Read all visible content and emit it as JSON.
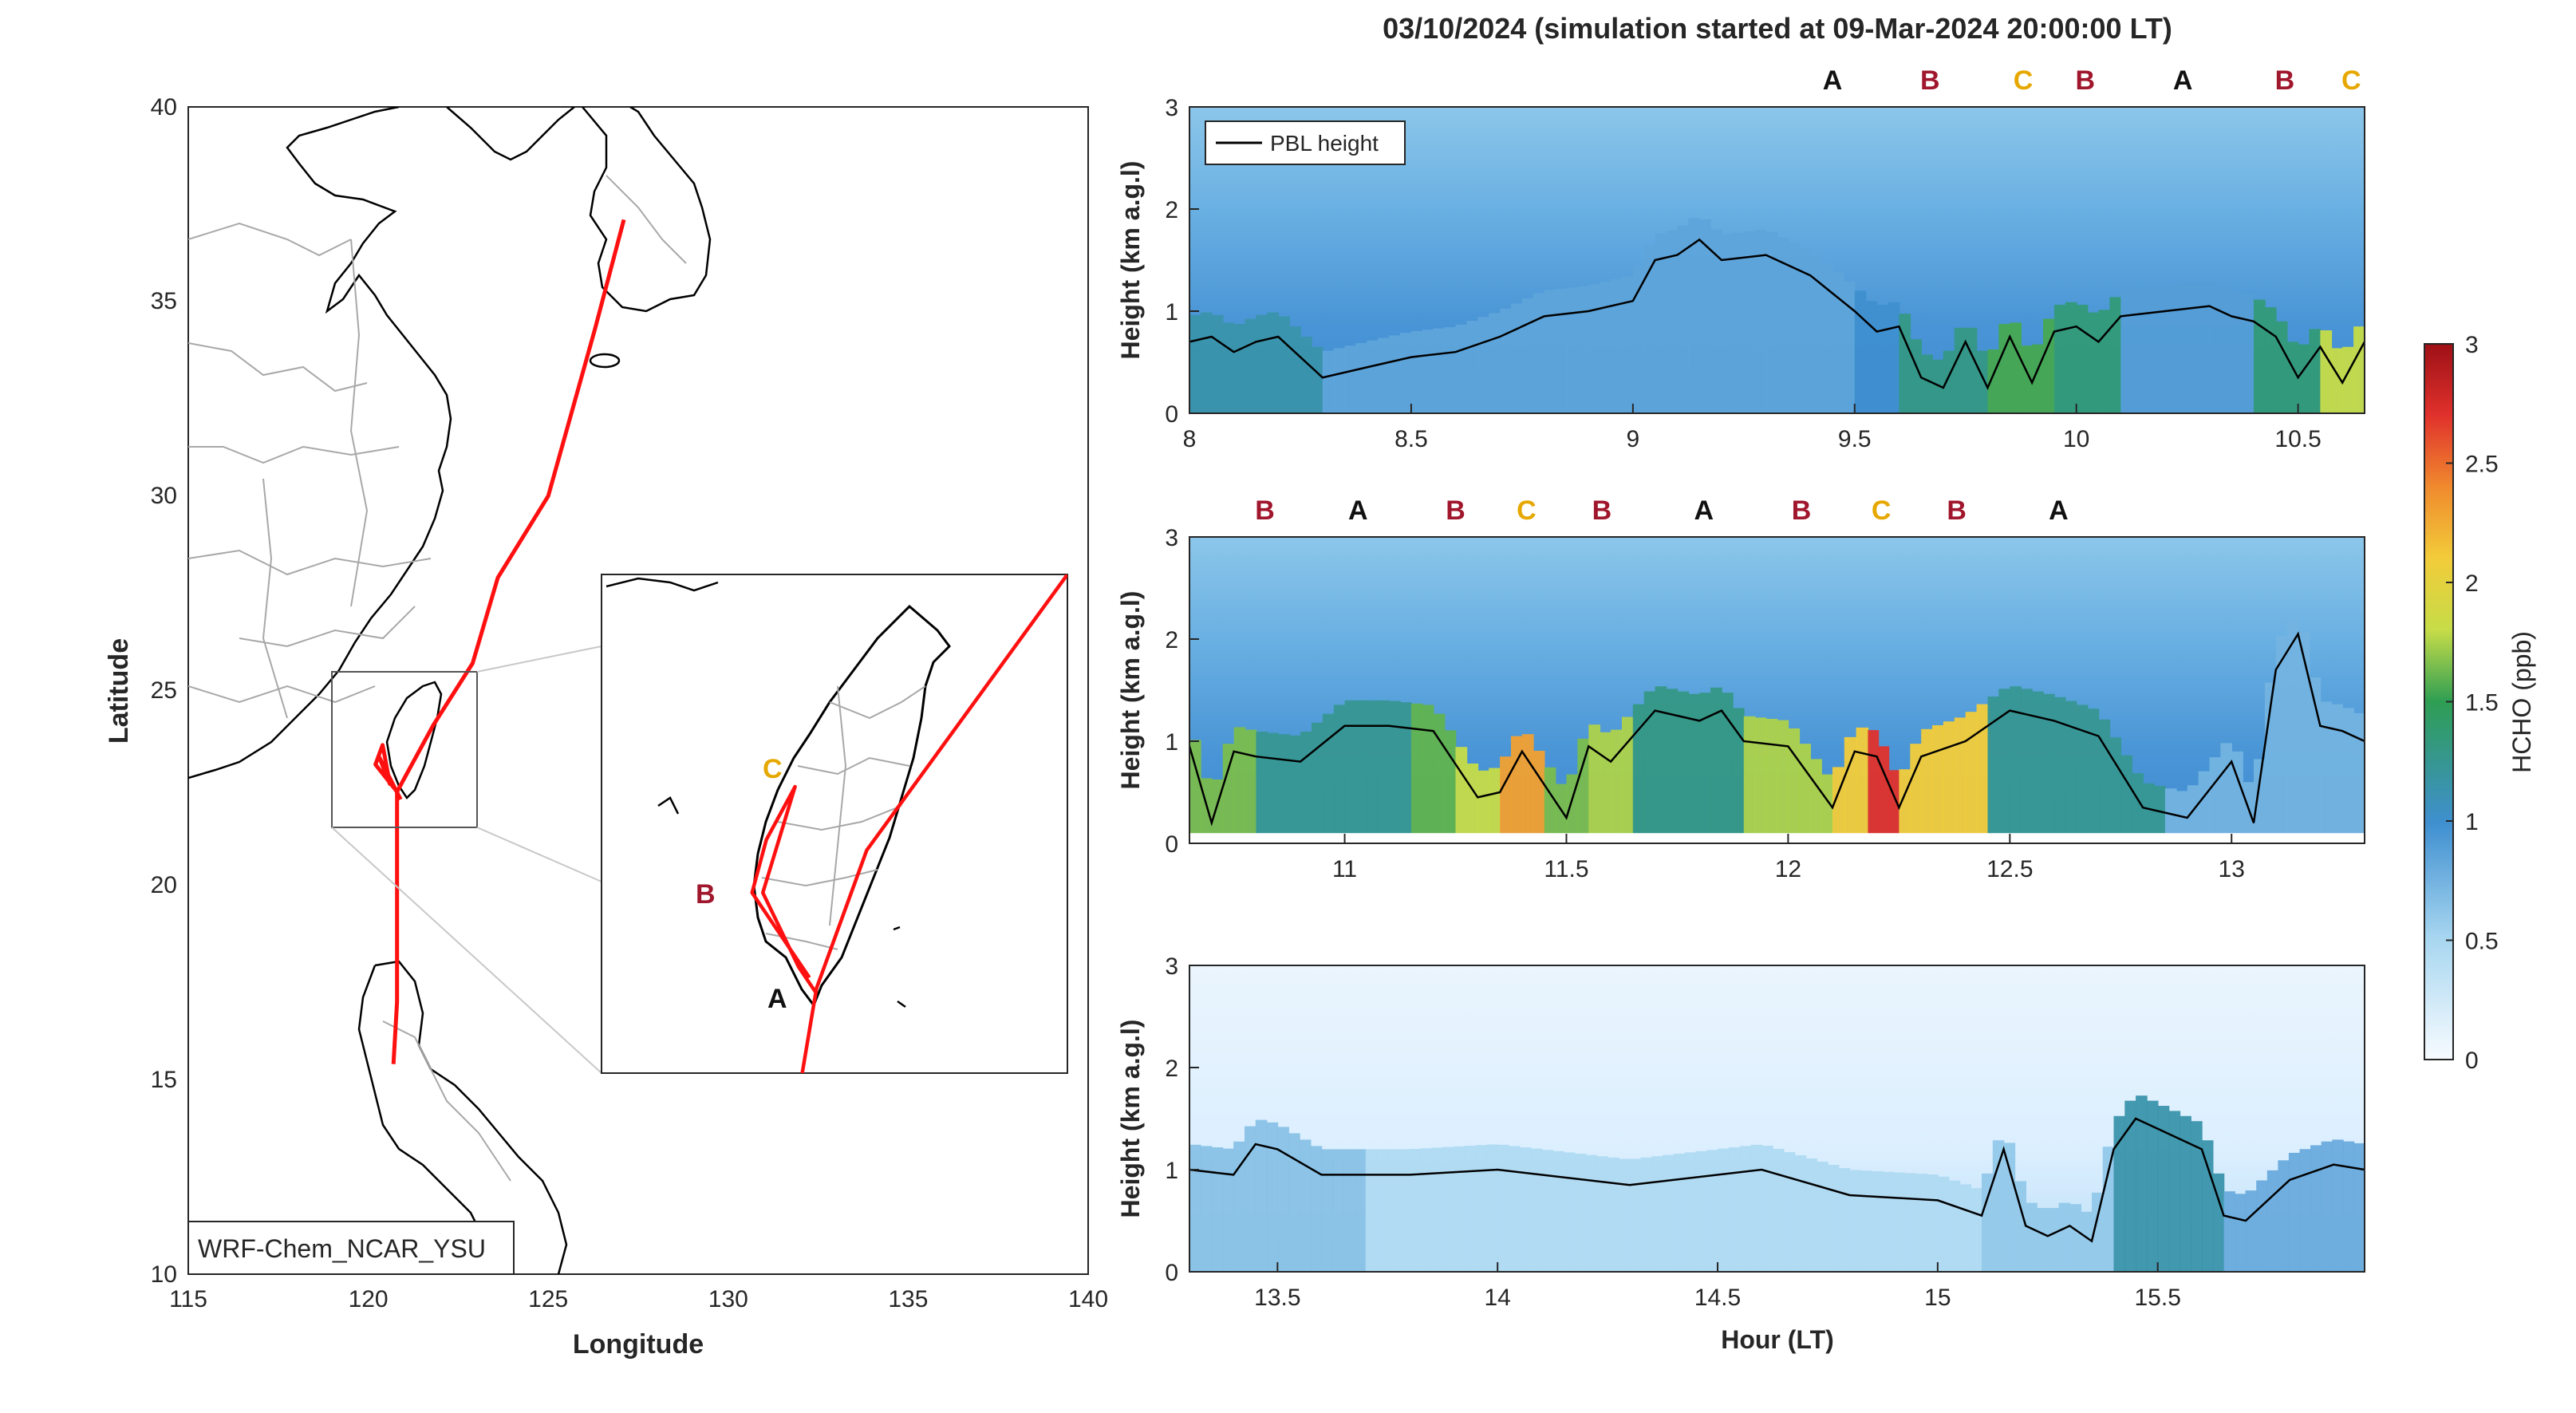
{
  "figure": {
    "title": "03/10/2024 (simulation started at 09-Mar-2024 20:00:00 LT)",
    "colors": {
      "track": "#ff1010",
      "label_A": "#111111",
      "label_B": "#a0162c",
      "label_C": "#e6a800",
      "coast": "#000000",
      "boundary": "#a8a8a8"
    }
  },
  "chart_data": [
    {
      "type": "map",
      "xlabel": "Longitude",
      "ylabel": "Latitude",
      "xlim": [
        115,
        140
      ],
      "ylim": [
        10,
        40
      ],
      "xticks": [
        "115",
        "120",
        "125",
        "130",
        "135",
        "140"
      ],
      "yticks": [
        "10",
        "15",
        "20",
        "25",
        "30",
        "35",
        "40"
      ],
      "model_label": "WRF-Chem_NCAR_YSU",
      "flight_track": [
        {
          "lon": 127.1,
          "lat": 37.1
        },
        {
          "lon": 126.3,
          "lat": 34.3
        },
        {
          "lon": 125.0,
          "lat": 30.0
        },
        {
          "lon": 123.6,
          "lat": 27.9
        },
        {
          "lon": 122.9,
          "lat": 25.7
        },
        {
          "lon": 121.8,
          "lat": 24.1
        },
        {
          "lon": 120.8,
          "lat": 22.4
        },
        {
          "lon": 120.8,
          "lat": 20.0
        },
        {
          "lon": 120.8,
          "lat": 17.0
        },
        {
          "lon": 120.7,
          "lat": 15.4
        }
      ],
      "inset": {
        "markers": [
          {
            "label": "A",
            "lon": 120.7,
            "lat": 22.05
          },
          {
            "label": "B",
            "lon": 120.15,
            "lat": 23.0
          },
          {
            "label": "C",
            "lon": 120.6,
            "lat": 23.9
          }
        ]
      }
    },
    {
      "type": "heatmap",
      "xlim": [
        8,
        10.65
      ],
      "ylim": [
        0,
        3
      ],
      "xticks": [
        "8",
        "8.5",
        "9",
        "9.5",
        "10",
        "10.5"
      ],
      "yticks": [
        "0",
        "1",
        "2",
        "3"
      ],
      "ylabel": "Height (km a.g.l)",
      "legend": "PBL height",
      "site_labels": [
        {
          "label": "A",
          "x": 9.45
        },
        {
          "label": "B",
          "x": 9.67
        },
        {
          "label": "C",
          "x": 9.88
        },
        {
          "label": "B",
          "x": 10.02
        },
        {
          "label": "A",
          "x": 10.24
        },
        {
          "label": "B",
          "x": 10.47
        },
        {
          "label": "C",
          "x": 10.62
        }
      ],
      "pbl": {
        "x": [
          8.0,
          8.05,
          8.1,
          8.15,
          8.2,
          8.25,
          8.3,
          8.4,
          8.5,
          8.6,
          8.7,
          8.8,
          8.9,
          9.0,
          9.05,
          9.1,
          9.15,
          9.2,
          9.3,
          9.4,
          9.5,
          9.55,
          9.6,
          9.65,
          9.7,
          9.75,
          9.8,
          9.85,
          9.9,
          9.95,
          10.0,
          10.05,
          10.1,
          10.2,
          10.3,
          10.35,
          10.4,
          10.45,
          10.5,
          10.55,
          10.6,
          10.65
        ],
        "y": [
          0.7,
          0.75,
          0.6,
          0.7,
          0.75,
          0.55,
          0.35,
          0.45,
          0.55,
          0.6,
          0.75,
          0.95,
          1.0,
          1.1,
          1.5,
          1.55,
          1.7,
          1.5,
          1.55,
          1.35,
          1.0,
          0.8,
          0.85,
          0.35,
          0.25,
          0.7,
          0.25,
          0.75,
          0.3,
          0.8,
          0.85,
          0.7,
          0.95,
          1.0,
          1.05,
          0.95,
          0.9,
          0.75,
          0.35,
          0.65,
          0.3,
          0.7
        ]
      },
      "hcho_surface": [
        {
          "x0": 8.0,
          "x1": 8.3,
          "v": 1.15
        },
        {
          "x0": 8.3,
          "x1": 9.5,
          "v": 0.85
        },
        {
          "x0": 9.5,
          "x1": 9.6,
          "v": 1.0
        },
        {
          "x0": 9.6,
          "x1": 9.8,
          "v": 1.3
        },
        {
          "x0": 9.8,
          "x1": 9.95,
          "v": 1.55
        },
        {
          "x0": 9.95,
          "x1": 10.1,
          "v": 1.35
        },
        {
          "x0": 10.1,
          "x1": 10.4,
          "v": 0.9
        },
        {
          "x0": 10.4,
          "x1": 10.55,
          "v": 1.35
        },
        {
          "x0": 10.55,
          "x1": 10.65,
          "v": 1.8
        }
      ]
    },
    {
      "type": "heatmap",
      "xlim": [
        10.65,
        13.3
      ],
      "ylim": [
        0,
        3
      ],
      "xticks": [
        "11",
        "11.5",
        "12",
        "12.5",
        "13"
      ],
      "yticks": [
        "0",
        "1",
        "2",
        "3"
      ],
      "ylabel": "Height (km a.g.l)",
      "site_labels": [
        {
          "label": "B",
          "x": 10.82
        },
        {
          "label": "A",
          "x": 11.03
        },
        {
          "label": "B",
          "x": 11.25
        },
        {
          "label": "C",
          "x": 11.41
        },
        {
          "label": "B",
          "x": 11.58
        },
        {
          "label": "A",
          "x": 11.81
        },
        {
          "label": "B",
          "x": 12.03
        },
        {
          "label": "C",
          "x": 12.21
        },
        {
          "label": "B",
          "x": 12.38
        },
        {
          "label": "A",
          "x": 12.61
        }
      ],
      "pbl": {
        "x": [
          10.65,
          10.7,
          10.75,
          10.8,
          10.9,
          11.0,
          11.1,
          11.2,
          11.3,
          11.35,
          11.4,
          11.5,
          11.55,
          11.6,
          11.7,
          11.8,
          11.85,
          11.9,
          12.0,
          12.1,
          12.15,
          12.2,
          12.25,
          12.3,
          12.4,
          12.5,
          12.6,
          12.7,
          12.8,
          12.9,
          13.0,
          13.05,
          13.1,
          13.15,
          13.2,
          13.25,
          13.3
        ],
        "y": [
          0.95,
          0.2,
          0.9,
          0.85,
          0.8,
          1.15,
          1.15,
          1.1,
          0.45,
          0.5,
          0.9,
          0.25,
          0.95,
          0.8,
          1.3,
          1.2,
          1.3,
          1.0,
          0.95,
          0.35,
          0.9,
          0.85,
          0.35,
          0.85,
          1.0,
          1.3,
          1.2,
          1.05,
          0.35,
          0.25,
          0.8,
          0.2,
          1.7,
          2.05,
          1.15,
          1.1,
          1.0
        ]
      },
      "hcho_surface": [
        {
          "x0": 10.65,
          "x1": 10.8,
          "v": 1.65
        },
        {
          "x0": 10.8,
          "x1": 11.15,
          "v": 1.25
        },
        {
          "x0": 11.15,
          "x1": 11.25,
          "v": 1.6
        },
        {
          "x0": 11.25,
          "x1": 11.35,
          "v": 1.8
        },
        {
          "x0": 11.35,
          "x1": 11.45,
          "v": 2.3
        },
        {
          "x0": 11.45,
          "x1": 11.55,
          "v": 1.65
        },
        {
          "x0": 11.55,
          "x1": 11.65,
          "v": 1.75
        },
        {
          "x0": 11.65,
          "x1": 11.9,
          "v": 1.3
        },
        {
          "x0": 11.9,
          "x1": 12.1,
          "v": 1.75
        },
        {
          "x0": 12.1,
          "x1": 12.18,
          "v": 2.1
        },
        {
          "x0": 12.18,
          "x1": 12.25,
          "v": 2.7
        },
        {
          "x0": 12.25,
          "x1": 12.45,
          "v": 2.1
        },
        {
          "x0": 12.45,
          "x1": 12.85,
          "v": 1.25
        },
        {
          "x0": 12.85,
          "x1": 13.3,
          "v": 0.75
        }
      ]
    },
    {
      "type": "heatmap",
      "xlim": [
        13.3,
        15.97
      ],
      "ylim": [
        0,
        3
      ],
      "xticks": [
        "13.5",
        "14",
        "14.5",
        "15",
        "15.5"
      ],
      "yticks": [
        "0",
        "1",
        "2",
        "3"
      ],
      "xlabel": "Hour (LT)",
      "ylabel": "Height (km a.g.l)",
      "pbl": {
        "x": [
          13.3,
          13.4,
          13.45,
          13.5,
          13.6,
          13.8,
          14.0,
          14.3,
          14.6,
          14.8,
          15.0,
          15.1,
          15.15,
          15.2,
          15.25,
          15.3,
          15.35,
          15.4,
          15.45,
          15.5,
          15.6,
          15.65,
          15.7,
          15.8,
          15.9,
          15.97
        ],
        "y": [
          1.0,
          0.95,
          1.25,
          1.2,
          0.95,
          0.95,
          1.0,
          0.85,
          1.0,
          0.75,
          0.7,
          0.55,
          1.2,
          0.45,
          0.35,
          0.45,
          0.3,
          1.2,
          1.5,
          1.4,
          1.2,
          0.55,
          0.5,
          0.9,
          1.05,
          1.0
        ]
      },
      "hcho_surface": [
        {
          "x0": 13.3,
          "x1": 13.7,
          "v": 0.65
        },
        {
          "x0": 13.7,
          "x1": 15.1,
          "v": 0.45
        },
        {
          "x0": 15.1,
          "x1": 15.4,
          "v": 0.6
        },
        {
          "x0": 15.4,
          "x1": 15.65,
          "v": 1.15
        },
        {
          "x0": 15.65,
          "x1": 15.97,
          "v": 0.8
        }
      ]
    }
  ],
  "colorbar": {
    "label": "HCHO (ppb)",
    "range": [
      0,
      3
    ],
    "ticks": [
      "0",
      "0.5",
      "1",
      "1.5",
      "2",
      "2.5",
      "3"
    ]
  }
}
